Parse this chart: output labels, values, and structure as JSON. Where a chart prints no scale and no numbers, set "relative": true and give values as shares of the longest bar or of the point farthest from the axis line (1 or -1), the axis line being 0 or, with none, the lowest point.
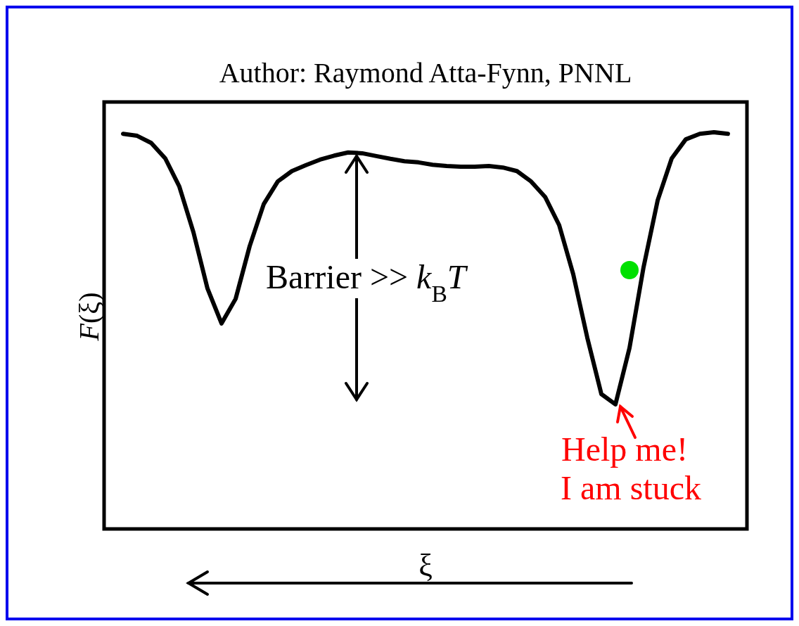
{
  "chart_data": {
    "type": "line",
    "title": "Author: Raymond Atta-Fynn, PNNL",
    "xlabel": "ξ",
    "ylabel": "F(ξ)",
    "relative": true,
    "line_style": "solid",
    "marker": "none",
    "categories": [
      null,
      null,
      null,
      null,
      null,
      null,
      null,
      null,
      null,
      null,
      null,
      null,
      null,
      null,
      null,
      null,
      null,
      null,
      null,
      null,
      null,
      null,
      null,
      null,
      null,
      null,
      null,
      null,
      null,
      null,
      null,
      null,
      null,
      null,
      null,
      null,
      null,
      null,
      null,
      null,
      null,
      null,
      null,
      null
    ],
    "series": [
      {
        "color": "#000000",
        "values": [
          0.996,
          0.991,
          0.973,
          0.934,
          0.863,
          0.748,
          0.606,
          0.518,
          0.58,
          0.713,
          0.819,
          0.876,
          0.902,
          0.917,
          0.931,
          0.941,
          0.949,
          0.947,
          0.94,
          0.933,
          0.927,
          0.924,
          0.918,
          0.915,
          0.913,
          0.913,
          0.915,
          0.911,
          0.902,
          0.876,
          0.837,
          0.766,
          0.642,
          0.482,
          0.34,
          0.314,
          0.456,
          0.66,
          0.828,
          0.934,
          0.982,
          0.996,
          1,
          0.996
        ]
      }
    ],
    "annotations": [
      "Barrier >> k$_{B}$T",
      "Help me!",
      "I am stuck"
    ]
  }
}
